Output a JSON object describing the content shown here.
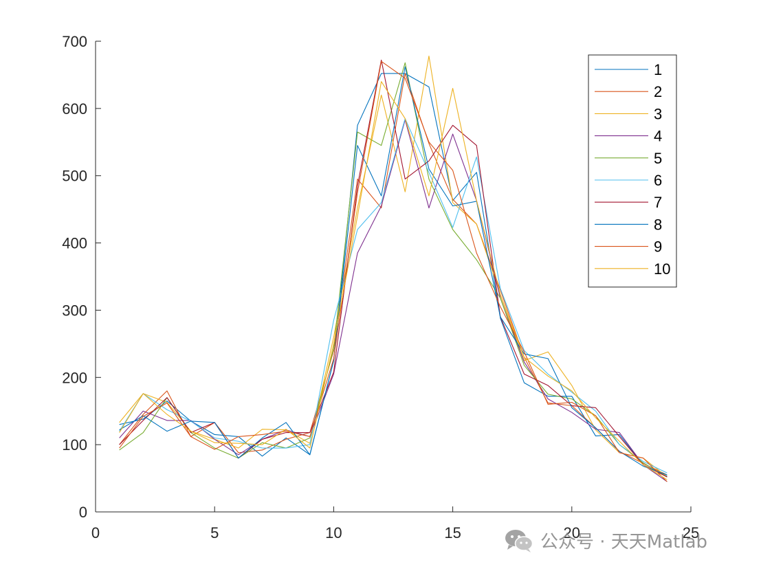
{
  "chart_data": {
    "type": "line",
    "title": "",
    "xlabel": "",
    "ylabel": "",
    "xlim": [
      0,
      25
    ],
    "ylim": [
      0,
      700
    ],
    "xticks": [
      "0",
      "5",
      "10",
      "15",
      "20",
      "25"
    ],
    "yticks": [
      "0",
      "100",
      "200",
      "300",
      "400",
      "500",
      "600",
      "700"
    ],
    "grid": false,
    "legend_position": "top-right",
    "x": [
      1,
      2,
      3,
      4,
      5,
      6,
      7,
      8,
      9,
      10,
      11,
      12,
      13,
      14,
      15,
      16,
      17,
      18,
      19,
      20,
      21,
      22,
      23,
      24
    ],
    "series": [
      {
        "name": "1",
        "color": "#0072BD",
        "values": [
          130,
          138,
          165,
          135,
          115,
          112,
          83,
          110,
          85,
          225,
          575,
          652,
          652,
          632,
          463,
          505,
          288,
          192,
          172,
          172,
          113,
          115,
          70,
          53
        ]
      },
      {
        "name": "2",
        "color": "#D95319",
        "values": [
          100,
          145,
          180,
          112,
          133,
          88,
          92,
          108,
          118,
          240,
          495,
          452,
          652,
          548,
          465,
          428,
          330,
          230,
          162,
          158,
          125,
          90,
          72,
          55
        ]
      },
      {
        "name": "3",
        "color": "#EDB120",
        "values": [
          133,
          176,
          163,
          120,
          108,
          95,
          123,
          122,
          102,
          260,
          452,
          620,
          476,
          678,
          460,
          428,
          323,
          225,
          238,
          188,
          122,
          88,
          80,
          52
        ]
      },
      {
        "name": "4",
        "color": "#7E2F8E",
        "values": [
          110,
          150,
          136,
          136,
          108,
          85,
          108,
          122,
          112,
          205,
          385,
          455,
          583,
          452,
          562,
          463,
          318,
          223,
          168,
          148,
          123,
          118,
          70,
          45
        ]
      },
      {
        "name": "5",
        "color": "#77AC30",
        "values": [
          92,
          118,
          170,
          118,
          95,
          80,
          103,
          95,
          110,
          243,
          565,
          545,
          668,
          495,
          420,
          375,
          318,
          218,
          175,
          168,
          143,
          100,
          73,
          52
        ]
      },
      {
        "name": "6",
        "color": "#4DBEEE",
        "values": [
          120,
          176,
          152,
          135,
          110,
          105,
          95,
          95,
          100,
          285,
          420,
          460,
          585,
          505,
          423,
          528,
          332,
          240,
          205,
          178,
          150,
          100,
          75,
          58
        ]
      },
      {
        "name": "7",
        "color": "#A2142F",
        "values": [
          100,
          136,
          170,
          118,
          133,
          80,
          108,
          118,
          118,
          208,
          485,
          672,
          495,
          522,
          575,
          545,
          290,
          205,
          188,
          158,
          155,
          112,
          70,
          52
        ]
      },
      {
        "name": "8",
        "color": "#0072BD",
        "values": [
          122,
          143,
          120,
          135,
          133,
          80,
          110,
          133,
          85,
          225,
          545,
          470,
          662,
          510,
          455,
          462,
          290,
          235,
          228,
          155,
          125,
          90,
          68,
          55
        ]
      },
      {
        "name": "9",
        "color": "#D95319",
        "values": [
          95,
          142,
          162,
          112,
          93,
          112,
          115,
          120,
          112,
          228,
          475,
          670,
          645,
          550,
          508,
          385,
          305,
          238,
          160,
          163,
          143,
          88,
          80,
          45
        ]
      },
      {
        "name": "10",
        "color": "#EDB120",
        "values": [
          118,
          176,
          145,
          120,
          103,
          102,
          100,
          123,
          95,
          250,
          440,
          640,
          585,
          470,
          630,
          463,
          323,
          230,
          202,
          180,
          140,
          105,
          70,
          48
        ]
      }
    ]
  },
  "watermark": {
    "text": "公众号 · 天天Matlab",
    "icon": "wechat-icon"
  }
}
